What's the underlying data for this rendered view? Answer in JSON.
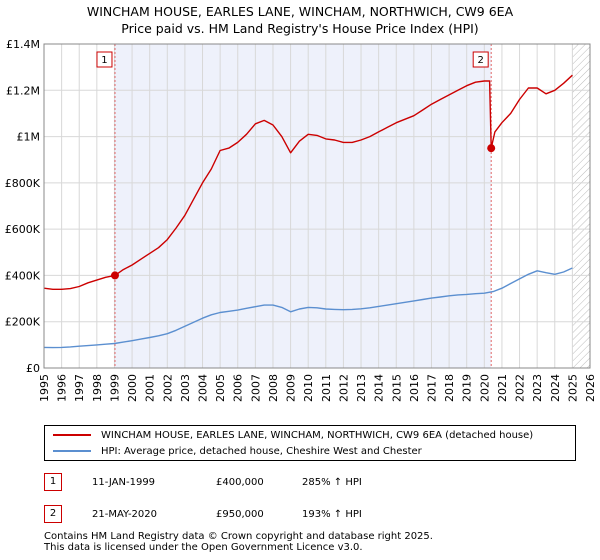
{
  "chart_data": {
    "type": "line",
    "title": "WINCHAM HOUSE, EARLES LANE, WINCHAM, NORTHWICH, CW9 6EA",
    "subtitle": "Price paid vs. HM Land Registry's House Price Index (HPI)",
    "xlabel": "",
    "ylabel": "",
    "xlim": [
      1995.0,
      2026.0
    ],
    "ylim": [
      0,
      1400000
    ],
    "x_ticks": [
      1995,
      1996,
      1997,
      1998,
      1999,
      2000,
      2001,
      2002,
      2003,
      2004,
      2005,
      2006,
      2007,
      2008,
      2009,
      2010,
      2011,
      2012,
      2013,
      2014,
      2015,
      2016,
      2017,
      2018,
      2019,
      2020,
      2021,
      2022,
      2023,
      2024,
      2025,
      2026
    ],
    "y_ticks": [
      {
        "value": 0,
        "label": "£0"
      },
      {
        "value": 200000,
        "label": "£200K"
      },
      {
        "value": 400000,
        "label": "£400K"
      },
      {
        "value": 600000,
        "label": "£600K"
      },
      {
        "value": 800000,
        "label": "£800K"
      },
      {
        "value": 1000000,
        "label": "£1M"
      },
      {
        "value": 1200000,
        "label": "£1.2M"
      },
      {
        "value": 1400000,
        "label": "£1.4M"
      }
    ],
    "grid": true,
    "shaded_ownership_period": [
      1999.03,
      2020.39
    ],
    "future_hatch_from": 2025.0,
    "series": [
      {
        "name": "WINCHAM HOUSE, EARLES LANE, WINCHAM, NORTHWICH, CW9 6EA (detached house)",
        "color": "#cc0000",
        "x": [
          1995.0,
          1995.5,
          1996.0,
          1996.5,
          1997.0,
          1997.5,
          1998.0,
          1998.5,
          1999.03,
          1999.5,
          2000.0,
          2000.5,
          2001.0,
          2001.5,
          2002.0,
          2002.5,
          2003.0,
          2003.5,
          2004.0,
          2004.5,
          2005.0,
          2005.5,
          2006.0,
          2006.5,
          2007.0,
          2007.5,
          2008.0,
          2008.5,
          2009.0,
          2009.5,
          2010.0,
          2010.5,
          2011.0,
          2011.5,
          2012.0,
          2012.5,
          2013.0,
          2013.5,
          2014.0,
          2014.5,
          2015.0,
          2015.5,
          2016.0,
          2016.5,
          2017.0,
          2017.5,
          2018.0,
          2018.5,
          2019.0,
          2019.5,
          2020.0,
          2020.3,
          2020.39,
          2020.6,
          2021.0,
          2021.5,
          2022.0,
          2022.5,
          2023.0,
          2023.5,
          2024.0,
          2024.5,
          2025.0
        ],
        "y": [
          345000,
          340000,
          340000,
          343000,
          352000,
          368000,
          380000,
          392000,
          400000,
          425000,
          445000,
          470000,
          495000,
          520000,
          555000,
          605000,
          660000,
          730000,
          800000,
          860000,
          940000,
          950000,
          975000,
          1010000,
          1055000,
          1070000,
          1050000,
          1000000,
          930000,
          980000,
          1010000,
          1005000,
          990000,
          985000,
          975000,
          975000,
          985000,
          1000000,
          1020000,
          1040000,
          1060000,
          1075000,
          1090000,
          1115000,
          1140000,
          1160000,
          1180000,
          1200000,
          1220000,
          1235000,
          1240000,
          1240000,
          950000,
          1020000,
          1060000,
          1100000,
          1160000,
          1210000,
          1210000,
          1185000,
          1200000,
          1230000,
          1265000
        ]
      },
      {
        "name": "HPI: Average price, detached house, Cheshire West and Chester",
        "color": "#5b8fd0",
        "x": [
          1995.0,
          1995.5,
          1996.0,
          1996.5,
          1997.0,
          1997.5,
          1998.0,
          1998.5,
          1999.0,
          1999.5,
          2000.0,
          2000.5,
          2001.0,
          2001.5,
          2002.0,
          2002.5,
          2003.0,
          2003.5,
          2004.0,
          2004.5,
          2005.0,
          2005.5,
          2006.0,
          2006.5,
          2007.0,
          2007.5,
          2008.0,
          2008.5,
          2009.0,
          2009.5,
          2010.0,
          2010.5,
          2011.0,
          2011.5,
          2012.0,
          2012.5,
          2013.0,
          2013.5,
          2014.0,
          2014.5,
          2015.0,
          2015.5,
          2016.0,
          2016.5,
          2017.0,
          2017.5,
          2018.0,
          2018.5,
          2019.0,
          2019.5,
          2020.0,
          2020.5,
          2021.0,
          2021.5,
          2022.0,
          2022.5,
          2023.0,
          2023.5,
          2024.0,
          2024.5,
          2025.0
        ],
        "y": [
          89000,
          88000,
          89000,
          91000,
          94000,
          97000,
          100000,
          103000,
          106000,
          112000,
          118000,
          125000,
          132000,
          139000,
          148000,
          163000,
          180000,
          198000,
          215000,
          230000,
          240000,
          245000,
          250000,
          258000,
          265000,
          272000,
          272000,
          262000,
          243000,
          255000,
          262000,
          260000,
          255000,
          253000,
          252000,
          253000,
          256000,
          260000,
          266000,
          272000,
          278000,
          284000,
          290000,
          296000,
          302000,
          307000,
          312000,
          316000,
          318000,
          321000,
          323000,
          330000,
          345000,
          365000,
          385000,
          405000,
          420000,
          412000,
          405000,
          415000,
          432000
        ]
      }
    ],
    "sales": [
      {
        "label": "1",
        "x": 1999.03,
        "y": 400000
      },
      {
        "label": "2",
        "x": 2020.39,
        "y": 950000
      }
    ]
  },
  "legend": {
    "property_label": "WINCHAM HOUSE, EARLES LANE, WINCHAM, NORTHWICH, CW9 6EA (detached house)",
    "hpi_label": "HPI: Average price, detached house, Cheshire West and Chester"
  },
  "transactions": [
    {
      "num": "1",
      "date": "11-JAN-1999",
      "price": "£400,000",
      "hpi": "285% ↑ HPI"
    },
    {
      "num": "2",
      "date": "21-MAY-2020",
      "price": "£950,000",
      "hpi": "193% ↑ HPI"
    }
  ],
  "footer": {
    "line1": "Contains HM Land Registry data © Crown copyright and database right 2025.",
    "line2": "This data is licensed under the Open Government Licence v3.0."
  }
}
